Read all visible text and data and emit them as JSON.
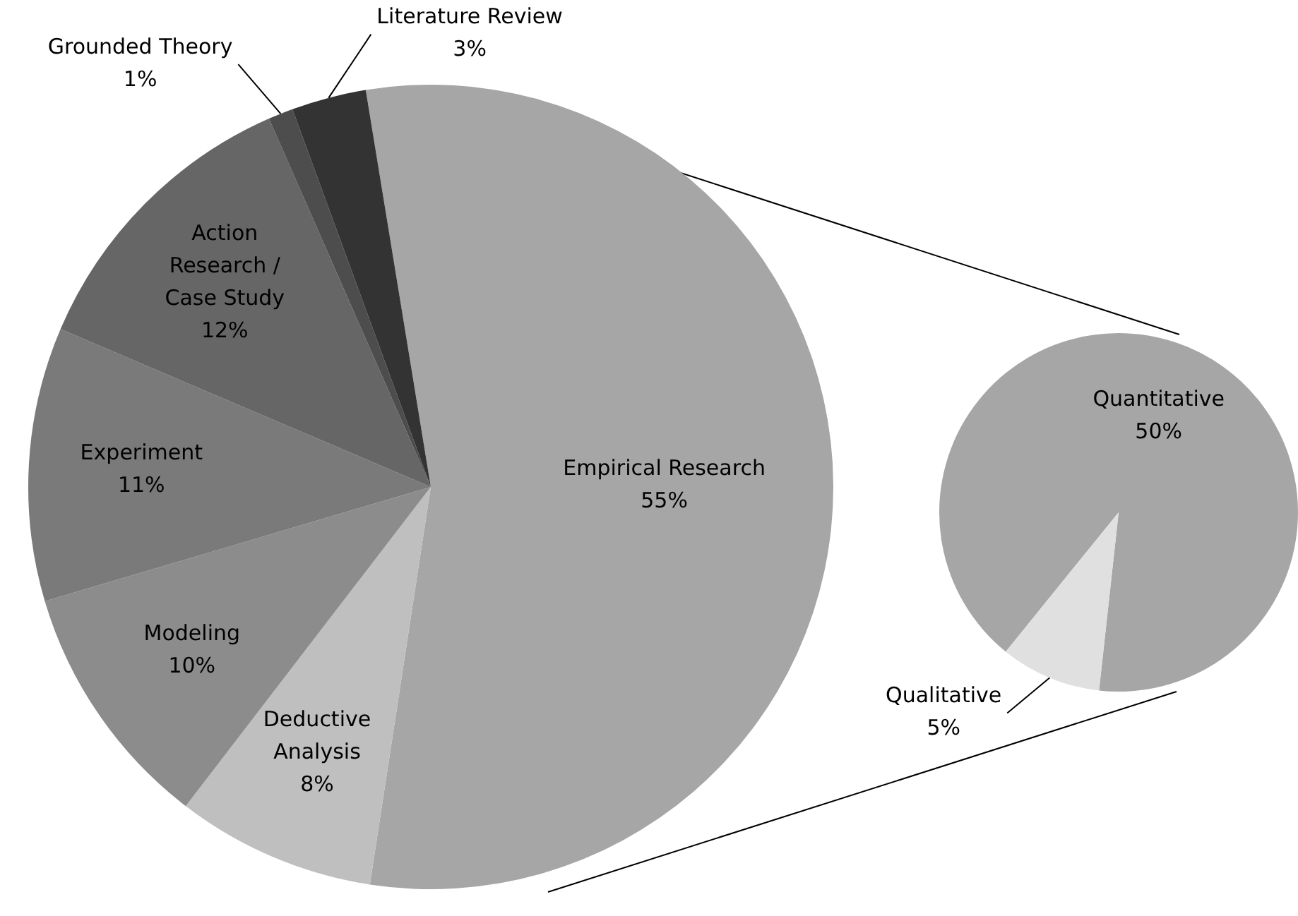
{
  "chart_data": [
    {
      "type": "pie",
      "categories": [
        "Empirical Research",
        "Deductive Analysis",
        "Modeling",
        "Experiment",
        "Action Research / Case Study",
        "Grounded Theory",
        "Literature Review"
      ],
      "values": [
        55,
        8,
        10,
        11,
        12,
        1,
        3
      ],
      "colors": [
        "#a6a6a6",
        "#bfbfbf",
        "#8c8c8c",
        "#7a7a7a",
        "#666666",
        "#4d4d4d",
        "#333333"
      ],
      "value_labels": [
        "55%",
        "8%",
        "10%",
        "11%",
        "12%",
        "1%",
        "3%"
      ],
      "legend": false
    },
    {
      "type": "pie",
      "categories": [
        "Quantitative",
        "Qualitative"
      ],
      "values": [
        50,
        5
      ],
      "colors": [
        "#a6a6a6",
        "#e0e0e0"
      ],
      "value_labels": [
        "50%",
        "5%"
      ],
      "legend": false
    }
  ]
}
